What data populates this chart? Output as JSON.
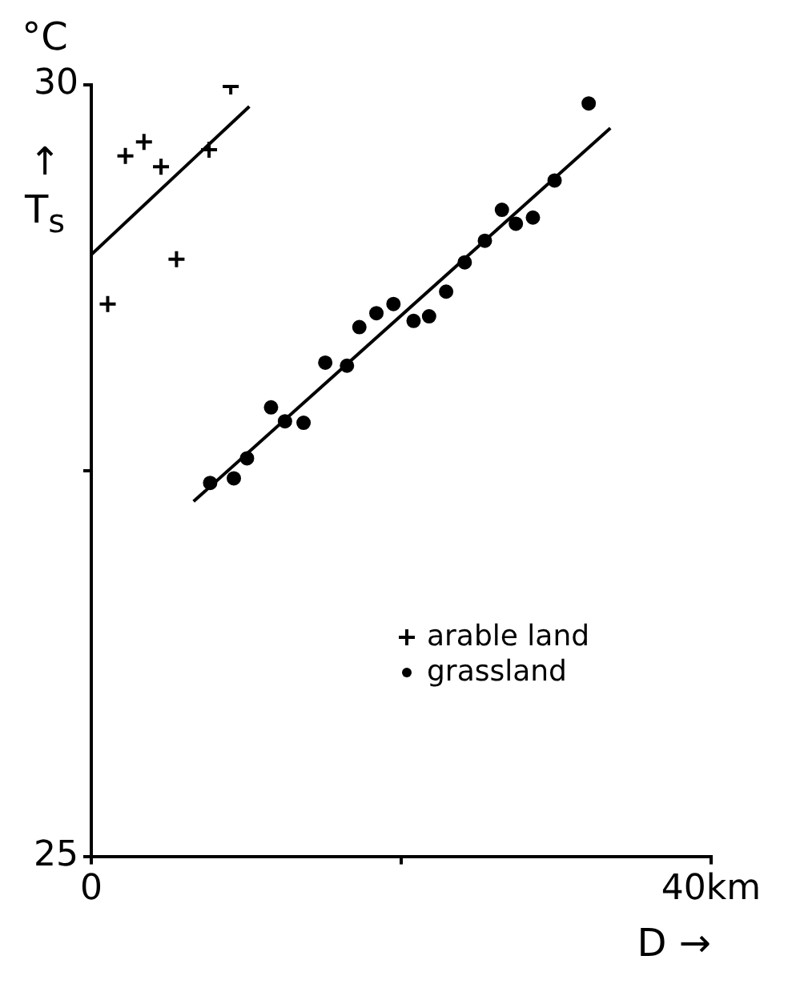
{
  "chart_data": {
    "type": "scatter",
    "xlabel": "D →",
    "ylabel": "°C ↑ T$_{s}$",
    "xlim": [
      0,
      40
    ],
    "xticks": [
      0,
      {
        "value": 20,
        "label": null
      },
      {
        "value": 40,
        "label": "40km"
      }
    ],
    "ylim": [
      25,
      30
    ],
    "yticks": [
      25,
      {
        "value": 27.5,
        "label": null
      },
      30
    ],
    "grid": false,
    "legend": "center",
    "series": [
      {
        "name": "arable land",
        "marker": "cross",
        "color": "#000000",
        "x": [
          1.06,
          2.2,
          3.4,
          4.5,
          5.5,
          7.6,
          9.0
        ],
        "values": [
          28.58,
          29.54,
          29.63,
          29.47,
          28.87,
          29.58,
          29.99
        ]
      },
      {
        "name": "grassland",
        "marker": "circle",
        "color": "#000000",
        "x": [
          7.67,
          9.2,
          10.05,
          11.6,
          12.5,
          13.7,
          15.1,
          16.5,
          17.3,
          18.4,
          19.5,
          20.8,
          21.8,
          22.9,
          24.1,
          25.4,
          26.5,
          27.4,
          28.5,
          29.9,
          32.1
        ],
        "values": [
          27.42,
          27.45,
          27.58,
          27.91,
          27.82,
          27.81,
          28.2,
          28.18,
          28.43,
          28.52,
          28.58,
          28.47,
          28.5,
          28.66,
          28.85,
          28.99,
          29.19,
          29.1,
          29.14,
          29.38,
          29.88
        ]
      },
      {
        "type": "line",
        "marker": "none",
        "line_style": "solid",
        "color": "#000000",
        "x": [
          0,
          10.2
        ],
        "values": [
          28.9,
          29.86
        ]
      },
      {
        "type": "line",
        "marker": "none",
        "line_style": "solid",
        "color": "#000000",
        "x": [
          6.6,
          33.5
        ],
        "values": [
          27.3,
          29.72
        ]
      }
    ]
  }
}
